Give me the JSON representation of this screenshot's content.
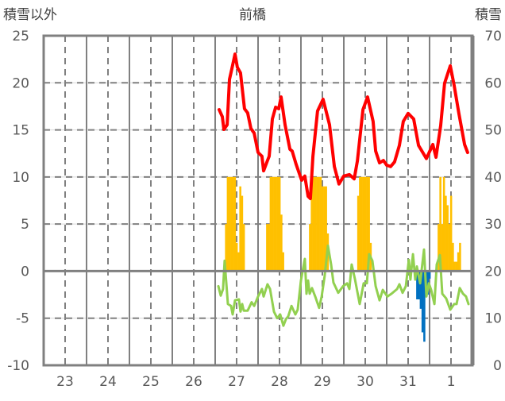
{
  "chart_data": {
    "type": "bar+line",
    "title": "前橋",
    "ylabel_left": "積雪以外",
    "ylabel_right": "積雪",
    "ylim_left": [
      -10,
      25
    ],
    "ylim_right": [
      0,
      70
    ],
    "yticks_left": [
      "25",
      "20",
      "15",
      "10",
      "5",
      "0",
      "-5",
      "-10"
    ],
    "yticks_right": [
      "70",
      "60",
      "50",
      "40",
      "30",
      "20",
      "10",
      "0"
    ],
    "x_unit": "hours since start of day 23",
    "xlim": [
      0,
      240
    ],
    "categories": [
      "23",
      "24",
      "25",
      "26",
      "27",
      "28",
      "29",
      "30",
      "31",
      "1"
    ],
    "grid": true,
    "colors": {
      "snow_depth": "#ff0000",
      "temperature": "#92d050",
      "bars_pos": "#ffc000",
      "bars_neg": "#0070c0",
      "grid": "#808080"
    },
    "series": [
      {
        "id": "snow_depth",
        "type": "line",
        "axis": "right",
        "color": "#ff0000",
        "points": [
          [
            98.2,
            54.3
          ],
          [
            100,
            52.8
          ],
          [
            100.9,
            50.1
          ],
          [
            102.7,
            51.1
          ],
          [
            104,
            60.7
          ],
          [
            105.3,
            62.9
          ],
          [
            107.1,
            66.1
          ],
          [
            108.4,
            63.3
          ],
          [
            110.2,
            62.1
          ],
          [
            112.4,
            54.5
          ],
          [
            114.2,
            53.6
          ],
          [
            116,
            50.3
          ],
          [
            117.8,
            49.3
          ],
          [
            120,
            45.2
          ],
          [
            122.2,
            44.4
          ],
          [
            123.1,
            41.3
          ],
          [
            125.3,
            43.5
          ],
          [
            126.2,
            44.4
          ],
          [
            128,
            52.3
          ],
          [
            129.8,
            54.8
          ],
          [
            131.6,
            54.5
          ],
          [
            132.9,
            57
          ],
          [
            135.1,
            51.1
          ],
          [
            137.8,
            45.9
          ],
          [
            139.1,
            45.5
          ],
          [
            141.3,
            42.7
          ],
          [
            144.4,
            39.3
          ],
          [
            146.2,
            40.2
          ],
          [
            148,
            35.9
          ],
          [
            149.3,
            35.4
          ],
          [
            150.7,
            44.4
          ],
          [
            153.3,
            54
          ],
          [
            156.4,
            56.5
          ],
          [
            160,
            51.1
          ],
          [
            162.7,
            42.2
          ],
          [
            165.3,
            38.5
          ],
          [
            168,
            40.2
          ],
          [
            171.1,
            40.5
          ],
          [
            173.8,
            39.6
          ],
          [
            175.6,
            43.4
          ],
          [
            178.7,
            54.3
          ],
          [
            181.3,
            57
          ],
          [
            184.4,
            51.8
          ],
          [
            185.8,
            45.5
          ],
          [
            188,
            43
          ],
          [
            190.2,
            43.5
          ],
          [
            192,
            42.5
          ],
          [
            194.2,
            42.2
          ],
          [
            196.4,
            43.2
          ],
          [
            199.1,
            46.7
          ],
          [
            201.3,
            51.8
          ],
          [
            204,
            53.5
          ],
          [
            207.1,
            52.3
          ],
          [
            209.8,
            46.7
          ],
          [
            214.2,
            43.9
          ],
          [
            217.8,
            46.9
          ],
          [
            219.6,
            44.2
          ],
          [
            222.2,
            50.9
          ],
          [
            224.4,
            59.9
          ],
          [
            227.6,
            63.6
          ],
          [
            229.8,
            59.4
          ],
          [
            232.4,
            53.5
          ],
          [
            235.6,
            46.9
          ],
          [
            237.3,
            45.2
          ]
        ]
      },
      {
        "id": "temperature",
        "type": "line",
        "axis": "left",
        "color": "#92d050",
        "points": [
          [
            97.8,
            -1.6
          ],
          [
            99.1,
            -2.6
          ],
          [
            100.4,
            -1.9
          ],
          [
            101.3,
            1.1
          ],
          [
            103.1,
            -3.5
          ],
          [
            104.9,
            -3.7
          ],
          [
            105.8,
            -4.6
          ],
          [
            107.1,
            -3.1
          ],
          [
            109.3,
            -3
          ],
          [
            110.2,
            -4.3
          ],
          [
            111.1,
            -3.5
          ],
          [
            112,
            -4.2
          ],
          [
            114.2,
            -4.2
          ],
          [
            116.4,
            -3.3
          ],
          [
            117.8,
            -3.7
          ],
          [
            120,
            -2.7
          ],
          [
            122.2,
            -1.9
          ],
          [
            123.1,
            -2.7
          ],
          [
            125.3,
            -1.4
          ],
          [
            126.7,
            -1.9
          ],
          [
            128.9,
            -4.3
          ],
          [
            130.7,
            -5
          ],
          [
            132.4,
            -4.6
          ],
          [
            134.2,
            -5.8
          ],
          [
            135.6,
            -5.1
          ],
          [
            136.9,
            -4.8
          ],
          [
            138.7,
            -3.7
          ],
          [
            140.9,
            -4.6
          ],
          [
            142.2,
            -4.1
          ],
          [
            144,
            -1
          ],
          [
            146.2,
            1.3
          ],
          [
            147.1,
            -2.4
          ],
          [
            148,
            -1
          ],
          [
            148.9,
            -2.4
          ],
          [
            150.2,
            -1.8
          ],
          [
            152,
            -2.7
          ],
          [
            154.2,
            -3.9
          ],
          [
            155.6,
            -2.7
          ],
          [
            157.3,
            -0.5
          ],
          [
            159.1,
            2.7
          ],
          [
            160.9,
            0.7
          ],
          [
            162.2,
            -1.2
          ],
          [
            164.9,
            -2.3
          ],
          [
            167.6,
            -1.6
          ],
          [
            169.8,
            -1.3
          ],
          [
            171.1,
            -1.9
          ],
          [
            172.4,
            0.7
          ],
          [
            174.2,
            -0.8
          ],
          [
            176.9,
            -3.5
          ],
          [
            179.1,
            -1.3
          ],
          [
            180.9,
            -1.3
          ],
          [
            182.2,
            1.8
          ],
          [
            184,
            1.1
          ],
          [
            185.8,
            -1.6
          ],
          [
            188,
            -3.1
          ],
          [
            189.8,
            -2
          ],
          [
            192.4,
            -2.7
          ],
          [
            194.7,
            -2.4
          ],
          [
            197.8,
            -1.9
          ],
          [
            199.1,
            -1.4
          ],
          [
            200.9,
            -2.3
          ],
          [
            202.7,
            -1.6
          ],
          [
            204.4,
            1.2
          ],
          [
            205.3,
            -0.9
          ],
          [
            206.7,
            1.8
          ],
          [
            208,
            -0.9
          ],
          [
            208.9,
            0.5
          ],
          [
            210.7,
            -1.3
          ],
          [
            212.9,
            2.3
          ],
          [
            214.2,
            -2.7
          ],
          [
            215.6,
            -1.3
          ],
          [
            216.9,
            -2
          ],
          [
            218.7,
            -3.5
          ],
          [
            220,
            0.7
          ],
          [
            221.8,
            1.7
          ],
          [
            223.1,
            -2.4
          ],
          [
            225.3,
            -2.9
          ],
          [
            227.6,
            -4.1
          ],
          [
            229.8,
            -3.5
          ],
          [
            231.1,
            -3.5
          ],
          [
            232.9,
            -1.8
          ],
          [
            234.7,
            -2.4
          ],
          [
            236.4,
            -2.7
          ],
          [
            237.8,
            -3.5
          ]
        ]
      },
      {
        "id": "bars",
        "type": "bar",
        "axis": "left",
        "points": [
          [
            102,
            5
          ],
          [
            103,
            10
          ],
          [
            104,
            10
          ],
          [
            105,
            10
          ],
          [
            106,
            10
          ],
          [
            107,
            10
          ],
          [
            108,
            3
          ],
          [
            109,
            2
          ],
          [
            110,
            9
          ],
          [
            111,
            8
          ],
          [
            112,
            5
          ],
          [
            125,
            5
          ],
          [
            126,
            5
          ],
          [
            127,
            10
          ],
          [
            128,
            10
          ],
          [
            129,
            10
          ],
          [
            130,
            10
          ],
          [
            131,
            10
          ],
          [
            132,
            10
          ],
          [
            133,
            6
          ],
          [
            134,
            2
          ],
          [
            149,
            5
          ],
          [
            150,
            10
          ],
          [
            151,
            10
          ],
          [
            152,
            10
          ],
          [
            153,
            10
          ],
          [
            154,
            10
          ],
          [
            155,
            10
          ],
          [
            156,
            9
          ],
          [
            157,
            9
          ],
          [
            158,
            9
          ],
          [
            159,
            4
          ],
          [
            176,
            8
          ],
          [
            177,
            10
          ],
          [
            178,
            10
          ],
          [
            179,
            10
          ],
          [
            180,
            10
          ],
          [
            181,
            10
          ],
          [
            182,
            10
          ],
          [
            183,
            3
          ],
          [
            209,
            -3
          ],
          [
            210,
            -3
          ],
          [
            211,
            -4
          ],
          [
            212,
            -6.5
          ],
          [
            213,
            -7.5
          ],
          [
            214,
            -2.5
          ],
          [
            215,
            -2.5
          ],
          [
            216,
            -0.8
          ],
          [
            221,
            5
          ],
          [
            222,
            10
          ],
          [
            223,
            5
          ],
          [
            224,
            10
          ],
          [
            225,
            8
          ],
          [
            226,
            7
          ],
          [
            227,
            5
          ],
          [
            228,
            8
          ],
          [
            229,
            3
          ],
          [
            230,
            1
          ],
          [
            231,
            1
          ],
          [
            232,
            2
          ],
          [
            233,
            3
          ]
        ]
      }
    ]
  }
}
